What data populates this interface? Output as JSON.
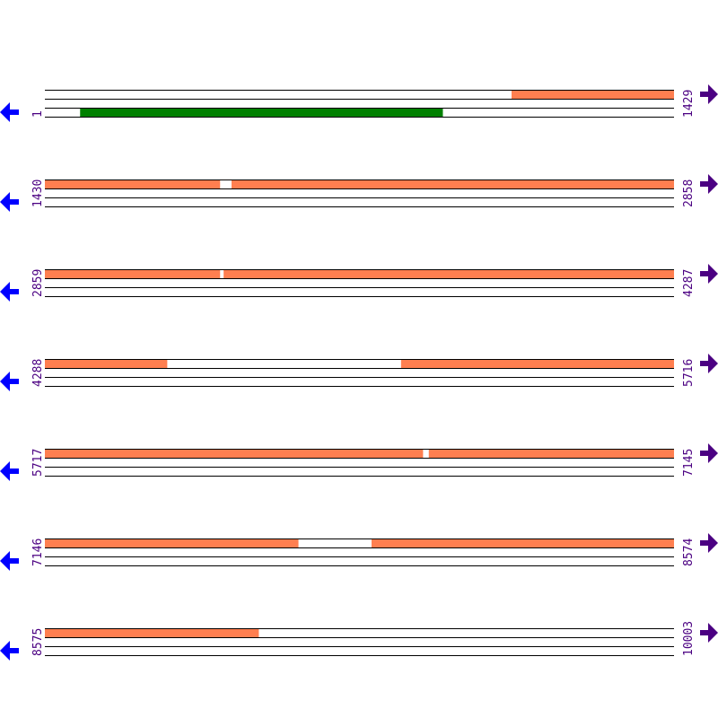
{
  "colors": {
    "orf": "#ff7f50",
    "feature": "#008000",
    "line": "#000000",
    "label": "#4b0082",
    "left_arrow": "#0000ff",
    "right_arrow": "#4b0082"
  },
  "icons": {
    "left": "arrow-left-icon",
    "right": "arrow-right-icon"
  },
  "rows": [
    {
      "start": "1",
      "end": "1429",
      "s": 1,
      "e": 1429,
      "top": [
        [
          1061,
          1429
        ]
      ],
      "bottom": [
        [
          81,
          904
        ]
      ]
    },
    {
      "start": "1430",
      "end": "2858",
      "s": 1430,
      "e": 2858,
      "top": [
        [
          1430,
          1827
        ],
        [
          1854,
          2858
        ]
      ],
      "bottom": []
    },
    {
      "start": "2859",
      "end": "4287",
      "s": 2859,
      "e": 4287,
      "top": [
        [
          2859,
          3256
        ],
        [
          3265,
          4287
        ]
      ],
      "bottom": []
    },
    {
      "start": "4288",
      "end": "5716",
      "s": 4288,
      "e": 5716,
      "top": [
        [
          4288,
          4565
        ],
        [
          5097,
          5716
        ]
      ],
      "bottom": []
    },
    {
      "start": "5717",
      "end": "7145",
      "s": 5717,
      "e": 7145,
      "top": [
        [
          5717,
          6575
        ],
        [
          6589,
          7145
        ]
      ],
      "bottom": []
    },
    {
      "start": "7146",
      "end": "8574",
      "s": 7146,
      "e": 8574,
      "top": [
        [
          7146,
          7721
        ],
        [
          7888,
          8574
        ]
      ],
      "bottom": []
    },
    {
      "start": "8575",
      "end": "10003",
      "s": 8575,
      "e": 10003,
      "top": [
        [
          8575,
          9060
        ]
      ],
      "bottom": []
    }
  ]
}
